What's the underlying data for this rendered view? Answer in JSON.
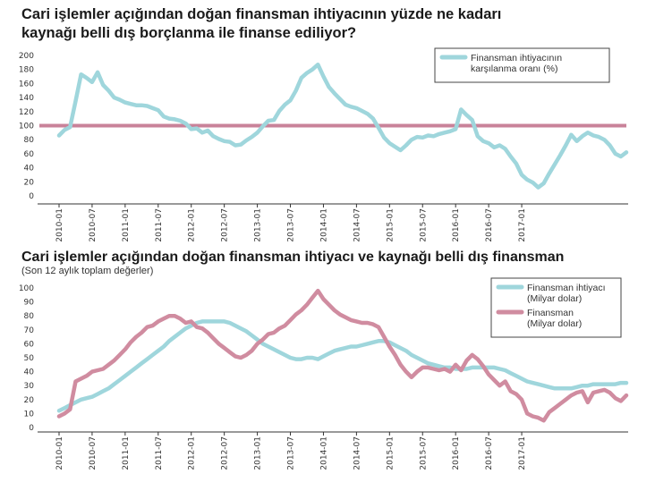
{
  "chart_data": [
    {
      "type": "line",
      "title": "Cari işlemler açığından doğan finansman ihtiyacının yüzde ne kadarı kaynağı belli dış borçlanma ile finanse ediliyor?",
      "ylim": [
        0,
        200
      ],
      "yticks": [
        0,
        20,
        40,
        60,
        80,
        100,
        120,
        140,
        160,
        180,
        200
      ],
      "xticks": [
        "2010-01",
        "2010-07",
        "2011-01",
        "2011-07",
        "2012-01",
        "2012-07",
        "2013-01",
        "2013-07",
        "2014-01",
        "2014-07",
        "2015-01",
        "2015-07",
        "2016-01",
        "2016-07",
        "2017-01"
      ],
      "reference_line": 100,
      "series": [
        {
          "name": "Finansman ihtiyacının karşılanma oranı (%)",
          "legend_lines": [
            "Finansman ihtiyacının",
            "karşılanma oranı (%)"
          ],
          "color": "#9fd6dc",
          "values": [
            86,
            94,
            98,
            135,
            173,
            168,
            162,
            176,
            158,
            150,
            140,
            137,
            133,
            131,
            129,
            129,
            128,
            125,
            122,
            113,
            110,
            109,
            107,
            103,
            95,
            96,
            90,
            93,
            85,
            81,
            78,
            77,
            72,
            73,
            79,
            84,
            90,
            99,
            107,
            108,
            121,
            130,
            136,
            150,
            168,
            175,
            180,
            187,
            170,
            155,
            146,
            138,
            130,
            127,
            125,
            121,
            117,
            110,
            97,
            83,
            75,
            70,
            65,
            72,
            80,
            84,
            83,
            86,
            85,
            88,
            90,
            92,
            95,
            123,
            115,
            108,
            85,
            78,
            75,
            69,
            72,
            67,
            56,
            46,
            30,
            23,
            19,
            12,
            18,
            32,
            45,
            58,
            72,
            87,
            78,
            85,
            90,
            86,
            84,
            80,
            72,
            60,
            56,
            62
          ]
        }
      ]
    },
    {
      "type": "line",
      "title": "Cari işlemler açığından doğan finansman ihtiyacı ve kaynağı belli dış finansman",
      "subtitle": "(Son 12 aylık toplam değerler)",
      "ylim": [
        0,
        100
      ],
      "yticks": [
        0,
        10,
        20,
        30,
        40,
        50,
        60,
        70,
        80,
        90,
        100
      ],
      "xticks": [
        "2010-01",
        "2010-07",
        "2011-01",
        "2011-07",
        "2012-01",
        "2012-07",
        "2013-01",
        "2013-07",
        "2014-01",
        "2014-07",
        "2015-01",
        "2015-07",
        "2016-01",
        "2016-07",
        "2017-01"
      ],
      "series": [
        {
          "name": "Finansman ihtiyacı (Milyar dolar)",
          "legend_lines": [
            "Finansman ihtiyacı",
            "(Milyar dolar)"
          ],
          "color": "#9fd6dc",
          "values": [
            12,
            14,
            16,
            18,
            20,
            21,
            22,
            24,
            26,
            28,
            31,
            34,
            37,
            40,
            43,
            46,
            49,
            52,
            55,
            58,
            62,
            65,
            68,
            71,
            73,
            75,
            76,
            76,
            76,
            76,
            76,
            75,
            73,
            71,
            69,
            66,
            63,
            60,
            58,
            56,
            54,
            52,
            50,
            49,
            49,
            50,
            50,
            49,
            51,
            53,
            55,
            56,
            57,
            58,
            58,
            59,
            60,
            61,
            62,
            62,
            61,
            59,
            57,
            55,
            52,
            50,
            48,
            46,
            45,
            44,
            43,
            43,
            42,
            42,
            42,
            43,
            43,
            43,
            43,
            43,
            42,
            41,
            39,
            37,
            35,
            33,
            32,
            31,
            30,
            29,
            28,
            28,
            28,
            28,
            29,
            30,
            30,
            31,
            31,
            31,
            31,
            31,
            32,
            32
          ]
        },
        {
          "name": "Finansman (Milyar dolar)",
          "legend_lines": [
            "Finansman",
            "(Milyar dolar)"
          ],
          "color": "#d08ca0",
          "values": [
            8,
            10,
            13,
            33,
            35,
            37,
            40,
            41,
            42,
            45,
            48,
            52,
            56,
            61,
            65,
            68,
            72,
            73,
            76,
            78,
            80,
            80,
            78,
            75,
            76,
            72,
            71,
            68,
            64,
            60,
            57,
            54,
            51,
            50,
            52,
            55,
            60,
            63,
            67,
            68,
            71,
            73,
            77,
            81,
            84,
            88,
            93,
            98,
            92,
            88,
            84,
            81,
            79,
            77,
            76,
            75,
            75,
            74,
            72,
            65,
            58,
            52,
            45,
            40,
            36,
            40,
            43,
            43,
            42,
            41,
            42,
            40,
            45,
            41,
            48,
            52,
            49,
            44,
            38,
            34,
            30,
            33,
            26,
            24,
            20,
            10,
            8,
            7,
            5,
            11,
            14,
            17,
            20,
            23,
            25,
            26,
            18,
            25,
            26,
            27,
            25,
            21,
            19,
            23
          ]
        }
      ]
    }
  ]
}
